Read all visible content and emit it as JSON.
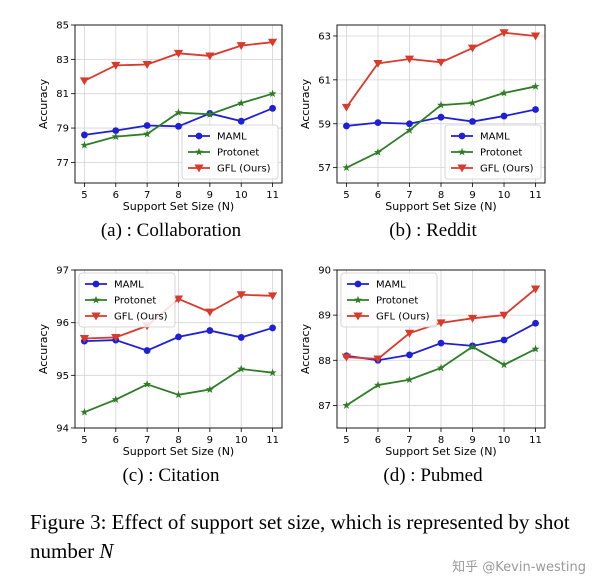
{
  "figure": {
    "caption_main": "Figure 3: Effect of support set size, which is represented by shot number",
    "caption_var": "N",
    "watermark": "知乎 @Kevin-westing"
  },
  "colors": {
    "MAML": "#1f1fd6",
    "Protonet": "#2e7d25",
    "GFL (Ours)": "#d93a2b"
  },
  "chart_data": [
    {
      "type": "line",
      "subcaption": "(a) : Collaboration",
      "xlabel": "Support Set Size (N)",
      "ylabel": "Accuracy",
      "x": [
        5,
        6,
        7,
        8,
        9,
        10,
        11
      ],
      "ylim": [
        75.8,
        85
      ],
      "yticks": [
        77,
        79,
        81,
        83,
        85
      ],
      "grid": true,
      "legend": "bottom-right",
      "series": [
        {
          "name": "MAML",
          "marker": "circle",
          "values": [
            78.6,
            78.85,
            79.15,
            79.1,
            79.85,
            79.4,
            80.15
          ]
        },
        {
          "name": "Protonet",
          "marker": "star",
          "values": [
            78.0,
            78.5,
            78.65,
            79.9,
            79.8,
            80.45,
            81.0
          ]
        },
        {
          "name": "GFL (Ours)",
          "marker": "triangle-down",
          "values": [
            81.75,
            82.65,
            82.7,
            83.35,
            83.2,
            83.8,
            84.0
          ]
        }
      ]
    },
    {
      "type": "line",
      "subcaption": "(b) : Reddit",
      "xlabel": "Support Set Size (N)",
      "ylabel": "Accuracy",
      "x": [
        5,
        6,
        7,
        8,
        9,
        10,
        11
      ],
      "ylim": [
        56.3,
        63.5
      ],
      "yticks": [
        57,
        59,
        61,
        63
      ],
      "grid": true,
      "legend": "bottom-right",
      "series": [
        {
          "name": "MAML",
          "marker": "circle",
          "values": [
            58.9,
            59.05,
            59.0,
            59.3,
            59.1,
            59.35,
            59.65
          ]
        },
        {
          "name": "Protonet",
          "marker": "star",
          "values": [
            57.0,
            57.7,
            58.7,
            59.85,
            59.95,
            60.4,
            60.7
          ]
        },
        {
          "name": "GFL (Ours)",
          "marker": "triangle-down",
          "values": [
            59.75,
            61.75,
            61.95,
            61.8,
            62.45,
            63.15,
            63.0
          ]
        }
      ]
    },
    {
      "type": "line",
      "subcaption": "(c) : Citation",
      "xlabel": "Support Set Size (N)",
      "ylabel": "Accuracy",
      "x": [
        5,
        6,
        7,
        8,
        9,
        10,
        11
      ],
      "ylim": [
        94,
        97
      ],
      "yticks": [
        94,
        95,
        96,
        97
      ],
      "grid": true,
      "legend": "top-left",
      "series": [
        {
          "name": "MAML",
          "marker": "circle",
          "values": [
            95.65,
            95.67,
            95.47,
            95.73,
            95.85,
            95.72,
            95.9
          ]
        },
        {
          "name": "Protonet",
          "marker": "star",
          "values": [
            94.3,
            94.54,
            94.83,
            94.63,
            94.73,
            95.12,
            95.05
          ]
        },
        {
          "name": "GFL (Ours)",
          "marker": "triangle-down",
          "values": [
            95.7,
            95.72,
            95.94,
            96.45,
            96.2,
            96.53,
            96.51
          ]
        }
      ]
    },
    {
      "type": "line",
      "subcaption": "(d) : Pubmed",
      "xlabel": "Support Set Size (N)",
      "ylabel": "Accuracy",
      "x": [
        5,
        6,
        7,
        8,
        9,
        10,
        11
      ],
      "ylim": [
        86.5,
        90
      ],
      "yticks": [
        87,
        88,
        89,
        90
      ],
      "grid": true,
      "legend": "top-left",
      "series": [
        {
          "name": "MAML",
          "marker": "circle",
          "values": [
            88.1,
            88.0,
            88.12,
            88.38,
            88.32,
            88.45,
            88.82
          ]
        },
        {
          "name": "Protonet",
          "marker": "star",
          "values": [
            87.0,
            87.45,
            87.57,
            87.83,
            88.3,
            87.9,
            88.25
          ]
        },
        {
          "name": "GFL (Ours)",
          "marker": "triangle-down",
          "values": [
            88.07,
            88.03,
            88.6,
            88.83,
            88.93,
            89.0,
            89.58
          ]
        }
      ]
    }
  ]
}
